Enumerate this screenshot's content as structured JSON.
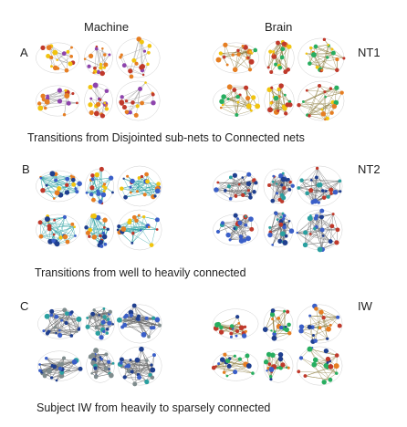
{
  "headers": {
    "machine": "Machine",
    "brain": "Brain"
  },
  "rows": [
    {
      "letter": "A",
      "tag": "NT1",
      "caption": "Transitions from Disjointed sub-nets to Connected nets",
      "machine": {
        "node_colors": [
          "#c0392b",
          "#e67e22",
          "#f1c40f",
          "#8e44ad"
        ],
        "edge_color": "#9a9a9a",
        "density": 0.25
      },
      "brain": {
        "node_colors": [
          "#c0392b",
          "#e67e22",
          "#27ae60",
          "#f1c40f"
        ],
        "edge_color": "#8a7a3a",
        "density": 0.45
      }
    },
    {
      "letter": "B",
      "tag": "NT2",
      "caption": "Transitions from well to heavily connected",
      "machine": {
        "node_colors": [
          "#1f3f8f",
          "#3a5fc8",
          "#e67e22",
          "#f1c40f",
          "#c0392b"
        ],
        "edge_color": "#2aa0a0",
        "density": 0.65
      },
      "brain": {
        "node_colors": [
          "#1f3f8f",
          "#3a5fc8",
          "#c0392b",
          "#2aa0a0"
        ],
        "edge_color": "#6a6a6a",
        "density": 0.75
      }
    },
    {
      "letter": "C",
      "tag": "IW",
      "caption": "Subject IW from heavily to sparsely connected",
      "machine": {
        "node_colors": [
          "#1f3f8f",
          "#3a5fc8",
          "#2aa0a0",
          "#7f8c8d"
        ],
        "edge_color": "#6a6a6a",
        "density": 0.9
      },
      "brain": {
        "node_colors": [
          "#c0392b",
          "#e67e22",
          "#27ae60",
          "#1f3f8f",
          "#3a5fc8"
        ],
        "edge_color": "#8a7a3a",
        "density": 0.45
      }
    }
  ]
}
